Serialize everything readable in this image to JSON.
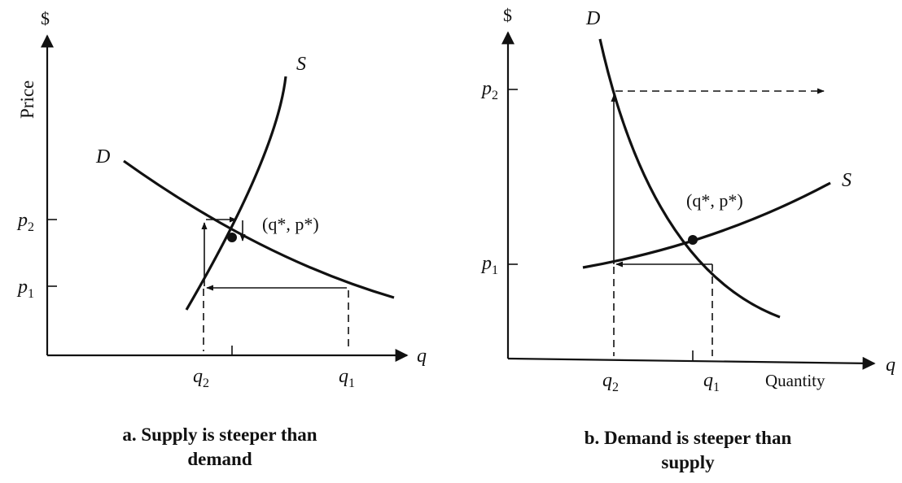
{
  "panel_a": {
    "axis_y_symbol": "$",
    "axis_y_label": "Price",
    "axis_x_symbol": "q",
    "supply_label": "S",
    "demand_label": "D",
    "p2_label": "p",
    "p2_sub": "2",
    "p1_label": "p",
    "p1_sub": "1",
    "q2_label": "q",
    "q2_sub": "2",
    "q1_label": "q",
    "q1_sub": "1",
    "equilibrium_label": "(q*,  p*)",
    "caption_line1": "a.  Supply is steeper than",
    "caption_line2": "demand"
  },
  "panel_b": {
    "axis_y_symbol": "$",
    "axis_x_symbol": "q",
    "axis_x_label": "Quantity",
    "supply_label": "S",
    "demand_label": "D",
    "p2_label": "p",
    "p2_sub": "2",
    "p1_label": "p",
    "p1_sub": "1",
    "q2_label": "q",
    "q2_sub": "2",
    "q1_label": "q",
    "q1_sub": "1",
    "equilibrium_label": "(q*,  p*)",
    "caption_line1": "b.  Demand is steeper than",
    "caption_line2": "supply"
  }
}
